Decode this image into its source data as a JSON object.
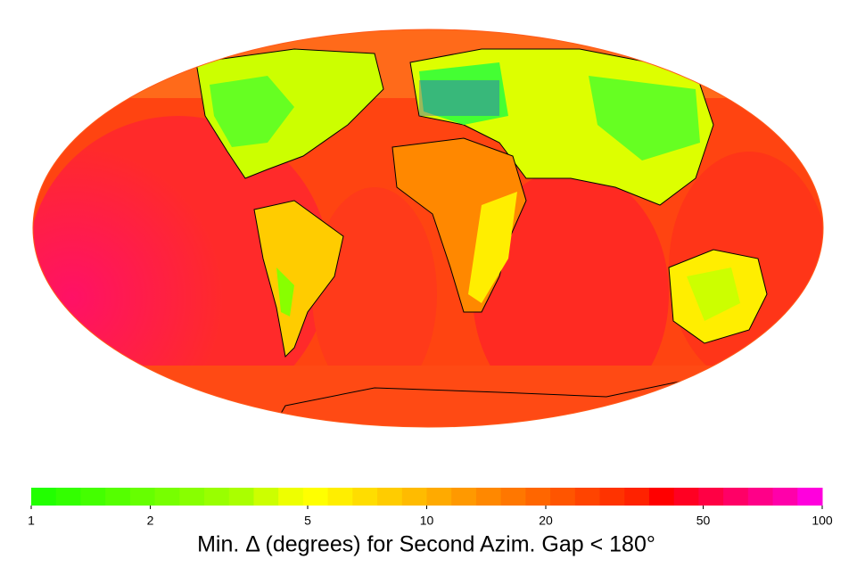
{
  "map": {
    "projection": "mollweide"
  },
  "colorbar": {
    "label": "Min. Δ (degrees) for Second Azim. Gap < 180°",
    "lim": [
      1,
      100
    ],
    "ticks": [
      1,
      2,
      5,
      10,
      20,
      50,
      100
    ],
    "scale": "log",
    "colors": [
      "#22ff00",
      "#33ff00",
      "#44ff00",
      "#55ff00",
      "#66ff00",
      "#77ff00",
      "#88ff00",
      "#99ff00",
      "#aaff00",
      "#ccff00",
      "#eeff00",
      "#ffff00",
      "#ffee00",
      "#ffdd00",
      "#ffcc00",
      "#ffbb00",
      "#ffaa00",
      "#ff9900",
      "#ff8800",
      "#ff7700",
      "#ff6600",
      "#ff5500",
      "#ff4400",
      "#ff3300",
      "#ff2200",
      "#ff0000",
      "#ff0022",
      "#ff0044",
      "#ff0066",
      "#ff0088",
      "#ff00aa",
      "#ff00dd"
    ]
  }
}
